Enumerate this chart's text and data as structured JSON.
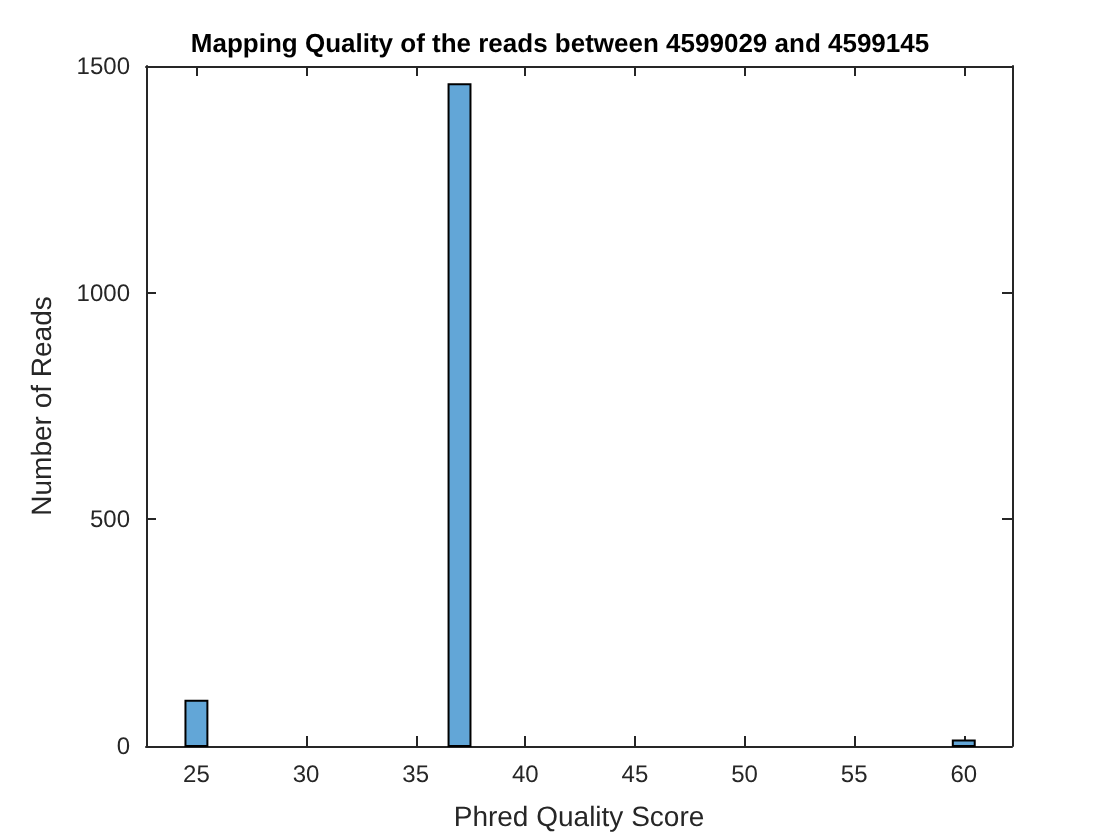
{
  "chart_data": {
    "type": "histogram",
    "title": "Mapping Quality of the reads between 4599029 and 4599145",
    "xlabel": "Phred Quality Score",
    "ylabel": "Number of Reads",
    "bins": [
      24.5,
      25.5,
      26.5,
      27.5,
      28.5,
      29.5,
      30.5,
      31.5,
      32.5,
      33.5,
      34.5,
      35.5,
      36.5,
      37.5,
      38.5,
      39.5,
      40.5,
      41.5,
      42.5,
      43.5,
      44.5,
      45.5,
      46.5,
      47.5,
      48.5,
      49.5,
      50.5,
      51.5,
      52.5,
      53.5,
      54.5,
      55.5,
      56.5,
      57.5,
      58.5,
      59.5,
      60.5
    ],
    "values": [
      100,
      0,
      0,
      0,
      0,
      0,
      0,
      0,
      0,
      0,
      0,
      0,
      1460,
      0,
      0,
      0,
      0,
      0,
      0,
      0,
      0,
      0,
      0,
      0,
      0,
      0,
      0,
      0,
      0,
      0,
      0,
      0,
      0,
      0,
      0,
      12
    ],
    "color": "#62a6d7",
    "xlim": [
      22.7,
      62.2
    ],
    "xticks": [
      25,
      30,
      35,
      40,
      45,
      50,
      55,
      60
    ],
    "ylim": [
      0,
      1500
    ],
    "yticks": [
      0,
      500,
      1000,
      1500
    ],
    "grid": false
  }
}
